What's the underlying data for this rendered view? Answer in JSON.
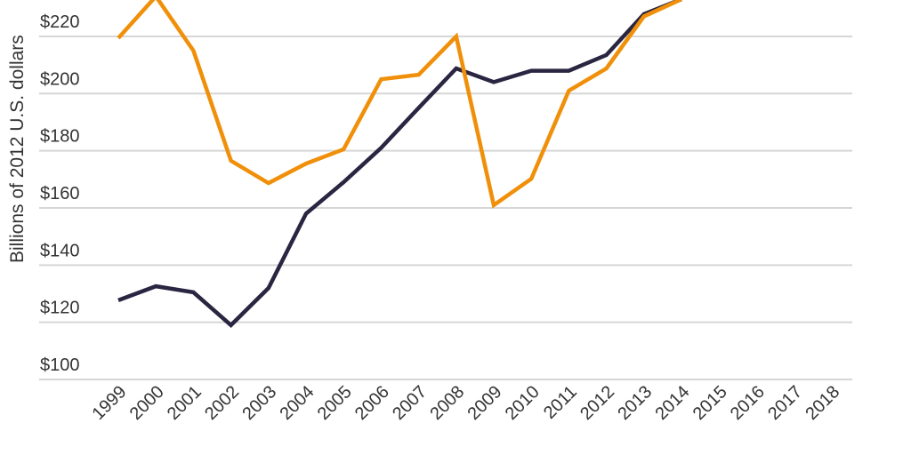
{
  "chart_data": {
    "type": "line",
    "title": "",
    "xlabel": "",
    "ylabel": "Billions of 2012 U.S. dollars",
    "ylim": [
      100,
      220
    ],
    "yticks": [
      "$100",
      "$120",
      "$140",
      "$160",
      "$180",
      "$200",
      "$220"
    ],
    "ytick_values": [
      100,
      120,
      140,
      160,
      180,
      200,
      220
    ],
    "grid": true,
    "categories": [
      "1999",
      "2000",
      "2001",
      "2002",
      "2003",
      "2004",
      "2005",
      "2006",
      "2007",
      "2008",
      "2009",
      "2010",
      "2011",
      "2012",
      "2013",
      "2014",
      "2015",
      "2016",
      "2017",
      "2018"
    ],
    "series": [
      {
        "color": "#2a2540",
        "values": [
          127.7,
          132.6,
          130.5,
          119,
          132,
          158,
          169,
          181,
          195,
          208.8,
          204,
          208,
          208,
          213.5,
          227.8,
          233,
          null,
          null,
          null,
          null
        ]
      },
      {
        "color": "#f0900a",
        "values": [
          219.4,
          234,
          215,
          176.5,
          168.7,
          175.5,
          180.5,
          205,
          206.6,
          220,
          161,
          170.2,
          201,
          208.8,
          227,
          233,
          null,
          null,
          null,
          null
        ]
      }
    ]
  }
}
